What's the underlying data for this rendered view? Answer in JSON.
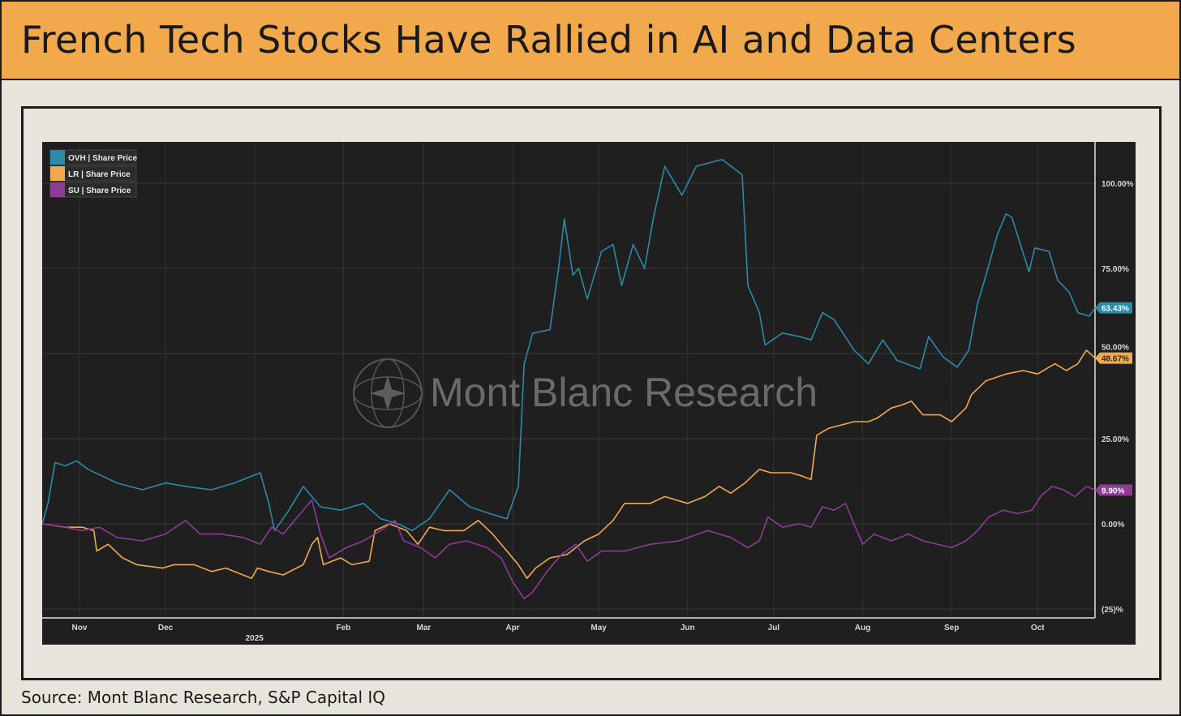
{
  "header": {
    "title": "French Tech Stocks Have Rallied in AI and Data Centers"
  },
  "source": "Source: Mont Blanc Research, S&P Capital IQ",
  "watermark": "Mont Blanc Research",
  "chart_data": {
    "type": "line",
    "title": "French Tech Stocks Have Rallied in AI and Data Centers",
    "x_unit": "days since 2024-10-19",
    "start_date": "2024-10-19",
    "xlim": [
      0,
      367
    ],
    "ylim": [
      -25,
      110
    ],
    "y_ticks": [
      {
        "v": 100,
        "label": "100.00%"
      },
      {
        "v": 75,
        "label": "75.00%"
      },
      {
        "v": 50,
        "label": "50.00%"
      },
      {
        "v": 25,
        "label": "25.00%"
      },
      {
        "v": 0,
        "label": "0.00%"
      },
      {
        "v": -25,
        "label": "(25)%"
      }
    ],
    "x_ticks": [
      {
        "d": 13,
        "label": "Nov"
      },
      {
        "d": 43,
        "label": "Dec"
      },
      {
        "d": 74,
        "label": "",
        "sub": "2025"
      },
      {
        "d": 105,
        "label": "Feb"
      },
      {
        "d": 133,
        "label": "Mar"
      },
      {
        "d": 164,
        "label": "Apr"
      },
      {
        "d": 194,
        "label": "May"
      },
      {
        "d": 225,
        "label": "Jun"
      },
      {
        "d": 255,
        "label": "Jul"
      },
      {
        "d": 286,
        "label": "Aug"
      },
      {
        "d": 317,
        "label": "Sep"
      },
      {
        "d": 347,
        "label": "Oct"
      }
    ],
    "grid": true,
    "legend_position": "top-left",
    "series": [
      {
        "name": "OVH | Share Price",
        "color": "#2a8aa8",
        "last_label": "63.43%",
        "points": [
          [
            0,
            0
          ],
          [
            2,
            6
          ],
          [
            4.5,
            18
          ],
          [
            8,
            17
          ],
          [
            12,
            18.5
          ],
          [
            16,
            16
          ],
          [
            21,
            14
          ],
          [
            26,
            12
          ],
          [
            35,
            10
          ],
          [
            43,
            12
          ],
          [
            50,
            11
          ],
          [
            59,
            10
          ],
          [
            67,
            12
          ],
          [
            76,
            15
          ],
          [
            79,
            6
          ],
          [
            81,
            -2
          ],
          [
            86,
            4
          ],
          [
            91,
            11
          ],
          [
            97,
            5
          ],
          [
            104,
            4
          ],
          [
            112,
            6
          ],
          [
            118,
            1.5
          ],
          [
            124,
            0
          ],
          [
            129,
            -2
          ],
          [
            135,
            1.5
          ],
          [
            142,
            10
          ],
          [
            149,
            5
          ],
          [
            156,
            3
          ],
          [
            162,
            1.5
          ],
          [
            166,
            11
          ],
          [
            168,
            47
          ],
          [
            171,
            56
          ],
          [
            177,
            57
          ],
          [
            180,
            75
          ],
          [
            182,
            89.5
          ],
          [
            185,
            73
          ],
          [
            187,
            75
          ],
          [
            190,
            66
          ],
          [
            195,
            80
          ],
          [
            199,
            82
          ],
          [
            202,
            70
          ],
          [
            206,
            82
          ],
          [
            210,
            75
          ],
          [
            213,
            89.5
          ],
          [
            217,
            105
          ],
          [
            223,
            96.5
          ],
          [
            228,
            105
          ],
          [
            237,
            107
          ],
          [
            244,
            102.5
          ],
          [
            246,
            70
          ],
          [
            250,
            62
          ],
          [
            252,
            52.5
          ],
          [
            258,
            56
          ],
          [
            264,
            55
          ],
          [
            268,
            54
          ],
          [
            272,
            62
          ],
          [
            276,
            60
          ],
          [
            283,
            51
          ],
          [
            288,
            47
          ],
          [
            293,
            54
          ],
          [
            298,
            48
          ],
          [
            306,
            45.5
          ],
          [
            309,
            55
          ],
          [
            314,
            49
          ],
          [
            319,
            46
          ],
          [
            323,
            51
          ],
          [
            326,
            64.5
          ],
          [
            329,
            73
          ],
          [
            333,
            85
          ],
          [
            336,
            91
          ],
          [
            338,
            90
          ],
          [
            344,
            74
          ],
          [
            346,
            81
          ],
          [
            351,
            80
          ],
          [
            354,
            71.5
          ],
          [
            358,
            68
          ],
          [
            361,
            62
          ],
          [
            365,
            61
          ],
          [
            367,
            63.43
          ]
        ]
      },
      {
        "name": "LR | Share Price",
        "color": "#f2a94c",
        "last_label": "48.67%",
        "points": [
          [
            0,
            0
          ],
          [
            8,
            -1
          ],
          [
            14,
            -1
          ],
          [
            18,
            -2
          ],
          [
            19,
            -8
          ],
          [
            23,
            -6
          ],
          [
            28,
            -10
          ],
          [
            33,
            -12
          ],
          [
            42,
            -13
          ],
          [
            46,
            -12
          ],
          [
            53,
            -12
          ],
          [
            59,
            -14
          ],
          [
            64,
            -13
          ],
          [
            73,
            -16
          ],
          [
            75,
            -13
          ],
          [
            79,
            -14
          ],
          [
            84,
            -15
          ],
          [
            91,
            -12
          ],
          [
            94,
            -6
          ],
          [
            96,
            -4
          ],
          [
            98,
            -12
          ],
          [
            104,
            -10
          ],
          [
            108,
            -12
          ],
          [
            114,
            -11
          ],
          [
            116,
            -2
          ],
          [
            121,
            0
          ],
          [
            127,
            -2
          ],
          [
            131,
            -6
          ],
          [
            135,
            -1
          ],
          [
            140,
            -2
          ],
          [
            147,
            -2
          ],
          [
            152,
            1
          ],
          [
            157,
            -3
          ],
          [
            162,
            -8
          ],
          [
            166,
            -12
          ],
          [
            169,
            -16
          ],
          [
            172,
            -13
          ],
          [
            177,
            -10
          ],
          [
            183,
            -9
          ],
          [
            189,
            -5
          ],
          [
            194,
            -3
          ],
          [
            199,
            1
          ],
          [
            203,
            6
          ],
          [
            212,
            6
          ],
          [
            217,
            8
          ],
          [
            225,
            6
          ],
          [
            231,
            8
          ],
          [
            236,
            11
          ],
          [
            240,
            9
          ],
          [
            245,
            12
          ],
          [
            250,
            16
          ],
          [
            254,
            15
          ],
          [
            261,
            15
          ],
          [
            265,
            14
          ],
          [
            268,
            13
          ],
          [
            270,
            26
          ],
          [
            274,
            28
          ],
          [
            283,
            30
          ],
          [
            288,
            30
          ],
          [
            291,
            31
          ],
          [
            296,
            34
          ],
          [
            300,
            35
          ],
          [
            303,
            36
          ],
          [
            307,
            32
          ],
          [
            313,
            32
          ],
          [
            317,
            30
          ],
          [
            322,
            34
          ],
          [
            324,
            38
          ],
          [
            329,
            42
          ],
          [
            336,
            44
          ],
          [
            342,
            45
          ],
          [
            347,
            44
          ],
          [
            353,
            47
          ],
          [
            357,
            45
          ],
          [
            361,
            47
          ],
          [
            364,
            51
          ],
          [
            367,
            48.67
          ]
        ]
      },
      {
        "name": "SU | Share Price",
        "color": "#8e3a96",
        "last_label": "9.90%",
        "points": [
          [
            0,
            0
          ],
          [
            8,
            -1
          ],
          [
            14,
            -2
          ],
          [
            20,
            -1
          ],
          [
            26,
            -4
          ],
          [
            35,
            -5
          ],
          [
            43,
            -3
          ],
          [
            50,
            1
          ],
          [
            55,
            -3
          ],
          [
            62,
            -3
          ],
          [
            70,
            -4
          ],
          [
            76,
            -6
          ],
          [
            80,
            -1
          ],
          [
            84,
            -3
          ],
          [
            88,
            1
          ],
          [
            94,
            7
          ],
          [
            97,
            -3
          ],
          [
            100,
            -10
          ],
          [
            106,
            -7
          ],
          [
            112,
            -5
          ],
          [
            118,
            -2
          ],
          [
            123,
            1
          ],
          [
            126,
            -5
          ],
          [
            132,
            -7
          ],
          [
            137,
            -10
          ],
          [
            142,
            -6
          ],
          [
            148,
            -5
          ],
          [
            155,
            -7
          ],
          [
            160,
            -10
          ],
          [
            164,
            -17
          ],
          [
            168,
            -22
          ],
          [
            171,
            -20
          ],
          [
            176,
            -14
          ],
          [
            181,
            -9
          ],
          [
            186,
            -6
          ],
          [
            190,
            -11
          ],
          [
            195,
            -8
          ],
          [
            203,
            -8
          ],
          [
            212,
            -6
          ],
          [
            222,
            -5
          ],
          [
            232,
            -2
          ],
          [
            240,
            -4
          ],
          [
            246,
            -7
          ],
          [
            250,
            -5
          ],
          [
            253,
            2
          ],
          [
            258,
            -1
          ],
          [
            264,
            0
          ],
          [
            268,
            -1
          ],
          [
            272,
            5
          ],
          [
            276,
            4
          ],
          [
            280,
            6
          ],
          [
            283,
            0
          ],
          [
            286,
            -6
          ],
          [
            290,
            -3
          ],
          [
            296,
            -5
          ],
          [
            302,
            -3
          ],
          [
            307,
            -5
          ],
          [
            312,
            -6
          ],
          [
            317,
            -7
          ],
          [
            322,
            -5
          ],
          [
            326,
            -2
          ],
          [
            330,
            2
          ],
          [
            335,
            4
          ],
          [
            340,
            3
          ],
          [
            345,
            4
          ],
          [
            348,
            8
          ],
          [
            352,
            11
          ],
          [
            356,
            10
          ],
          [
            360,
            8
          ],
          [
            364,
            11
          ],
          [
            367,
            9.9
          ]
        ]
      }
    ]
  }
}
